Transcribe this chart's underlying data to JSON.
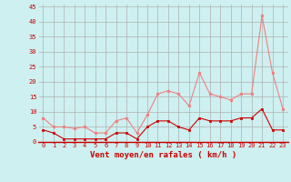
{
  "x": [
    0,
    1,
    2,
    3,
    4,
    5,
    6,
    7,
    8,
    9,
    10,
    11,
    12,
    13,
    14,
    15,
    16,
    17,
    18,
    19,
    20,
    21,
    22,
    23
  ],
  "rafales": [
    8,
    5,
    5,
    4.5,
    5,
    3,
    3,
    7,
    8,
    3,
    9,
    16,
    17,
    16,
    12,
    23,
    16,
    15,
    14,
    16,
    16,
    42,
    23,
    11
  ],
  "moyen": [
    4,
    3,
    1,
    1,
    1,
    1,
    1,
    3,
    3,
    1,
    5,
    7,
    7,
    5,
    4,
    8,
    7,
    7,
    7,
    8,
    8,
    11,
    4,
    4
  ],
  "xlabel": "Vent moyen/en rafales ( km/h )",
  "ylim": [
    0,
    46
  ],
  "yticks": [
    0,
    5,
    10,
    15,
    20,
    25,
    30,
    35,
    40,
    45
  ],
  "bg_color": "#cef0f0",
  "grid_color": "#b0b0b0",
  "line_color_rafales": "#f08080",
  "line_color_moyen": "#cc0000",
  "xlabel_fontsize": 6.5,
  "tick_fontsize": 5.0
}
